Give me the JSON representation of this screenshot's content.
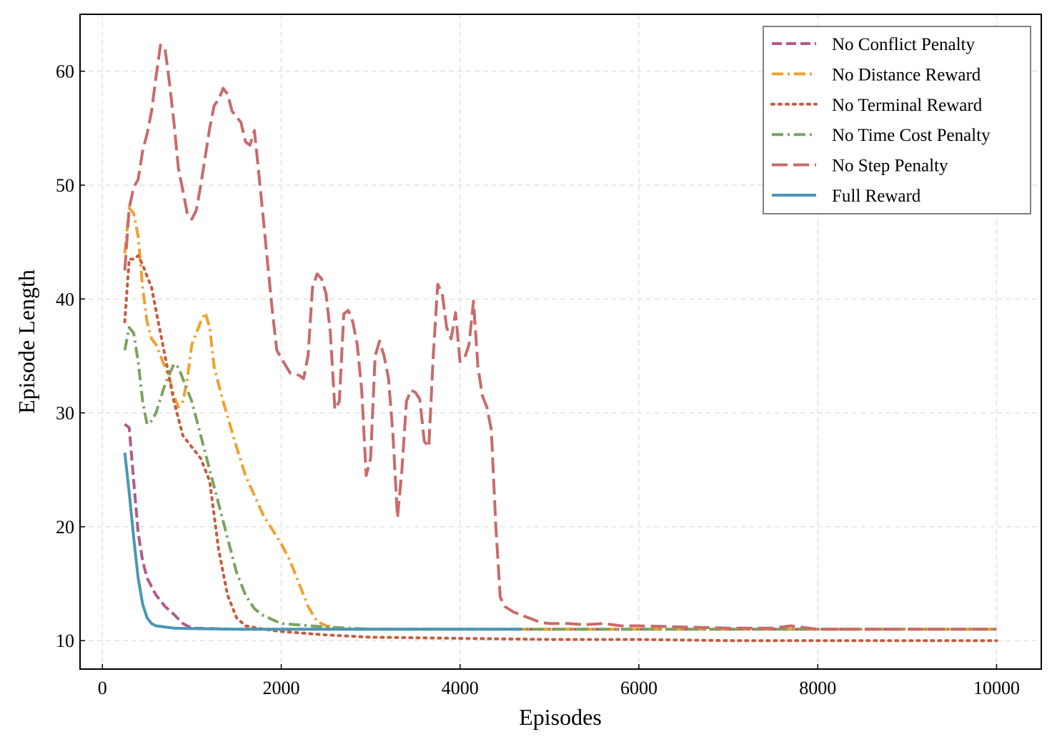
{
  "chart_data": {
    "type": "line",
    "title": "",
    "xlabel": "Episodes",
    "ylabel": "Episode Length",
    "xlim": [
      -250,
      10500
    ],
    "ylim": [
      7.5,
      65
    ],
    "xticks": [
      0,
      2000,
      4000,
      6000,
      8000,
      10000
    ],
    "xtick_labels": [
      "0",
      "2000",
      "4000",
      "6000",
      "8000",
      "10000"
    ],
    "yticks": [
      10,
      20,
      30,
      40,
      50,
      60
    ],
    "ytick_labels": [
      "10",
      "20",
      "30",
      "40",
      "50",
      "60"
    ],
    "grid": true,
    "legend_position": "top-right",
    "series": [
      {
        "name": "No Conflict Penalty",
        "color": "#b05a8c",
        "dash": "dash",
        "points": [
          [
            250,
            29
          ],
          [
            300,
            28.7
          ],
          [
            350,
            24
          ],
          [
            400,
            19.5
          ],
          [
            450,
            17
          ],
          [
            500,
            15.5
          ],
          [
            600,
            14
          ],
          [
            700,
            13
          ],
          [
            800,
            12.3
          ],
          [
            900,
            11.5
          ],
          [
            1000,
            11.1
          ],
          [
            1500,
            11.0
          ],
          [
            2000,
            11.0
          ],
          [
            3000,
            11.0
          ],
          [
            4000,
            11.0
          ],
          [
            5000,
            11.0
          ],
          [
            6000,
            11.0
          ],
          [
            7000,
            11.0
          ],
          [
            8000,
            11.0
          ],
          [
            9000,
            11.0
          ],
          [
            10000,
            11.0
          ]
        ]
      },
      {
        "name": "No Distance Reward",
        "color": "#f0a030",
        "dash": "dashdot",
        "points": [
          [
            250,
            44
          ],
          [
            300,
            48
          ],
          [
            350,
            47.5
          ],
          [
            400,
            45.5
          ],
          [
            450,
            41
          ],
          [
            500,
            38
          ],
          [
            550,
            36.5
          ],
          [
            600,
            36
          ],
          [
            700,
            34
          ],
          [
            750,
            33
          ],
          [
            800,
            31.5
          ],
          [
            850,
            30.5
          ],
          [
            900,
            31
          ],
          [
            950,
            33
          ],
          [
            1000,
            36
          ],
          [
            1100,
            38
          ],
          [
            1150,
            38.8
          ],
          [
            1200,
            37.5
          ],
          [
            1250,
            34
          ],
          [
            1350,
            31
          ],
          [
            1500,
            27
          ],
          [
            1600,
            24.5
          ],
          [
            1800,
            21
          ],
          [
            2000,
            18.5
          ],
          [
            2100,
            17
          ],
          [
            2200,
            15
          ],
          [
            2300,
            13
          ],
          [
            2400,
            11.7
          ],
          [
            2500,
            11.3
          ],
          [
            2700,
            11.0
          ],
          [
            3000,
            11.0
          ],
          [
            4000,
            11.0
          ],
          [
            5000,
            11.0
          ],
          [
            6000,
            11.0
          ],
          [
            7000,
            11.0
          ],
          [
            8000,
            11.0
          ],
          [
            9000,
            11.0
          ],
          [
            10000,
            11.0
          ]
        ]
      },
      {
        "name": "No Terminal Reward",
        "color": "#c75b3c",
        "dash": "dot",
        "points": [
          [
            250,
            38
          ],
          [
            300,
            43.5
          ],
          [
            350,
            43.5
          ],
          [
            400,
            43.8
          ],
          [
            450,
            43
          ],
          [
            500,
            42
          ],
          [
            550,
            41
          ],
          [
            600,
            39
          ],
          [
            700,
            35
          ],
          [
            800,
            31
          ],
          [
            900,
            28
          ],
          [
            1000,
            27
          ],
          [
            1100,
            26
          ],
          [
            1200,
            24
          ],
          [
            1300,
            18
          ],
          [
            1400,
            14
          ],
          [
            1500,
            12
          ],
          [
            1600,
            11.3
          ],
          [
            1800,
            11.0
          ],
          [
            2000,
            10.8
          ],
          [
            2500,
            10.5
          ],
          [
            3000,
            10.3
          ],
          [
            4000,
            10.2
          ],
          [
            5000,
            10.1
          ],
          [
            6000,
            10.1
          ],
          [
            7000,
            10.0
          ],
          [
            8000,
            10.0
          ],
          [
            9000,
            10.0
          ],
          [
            10000,
            10.0
          ]
        ]
      },
      {
        "name": "No Time Cost Penalty",
        "color": "#7aa35c",
        "dash": "dashdot",
        "points": [
          [
            250,
            35.5
          ],
          [
            300,
            37.5
          ],
          [
            350,
            37
          ],
          [
            400,
            34.5
          ],
          [
            450,
            31
          ],
          [
            500,
            29
          ],
          [
            550,
            29.3
          ],
          [
            600,
            30
          ],
          [
            700,
            32.5
          ],
          [
            800,
            34.3
          ],
          [
            850,
            34
          ],
          [
            900,
            33
          ],
          [
            1000,
            31
          ],
          [
            1100,
            28
          ],
          [
            1200,
            25
          ],
          [
            1300,
            22
          ],
          [
            1400,
            19
          ],
          [
            1500,
            16
          ],
          [
            1600,
            14
          ],
          [
            1700,
            12.8
          ],
          [
            1800,
            12.2
          ],
          [
            2000,
            11.5
          ],
          [
            2500,
            11.2
          ],
          [
            3000,
            11.0
          ],
          [
            4000,
            11.0
          ],
          [
            5000,
            11.0
          ],
          [
            6000,
            11.0
          ],
          [
            7000,
            11.0
          ],
          [
            8000,
            11.0
          ],
          [
            9000,
            11.0
          ],
          [
            10000,
            11.0
          ]
        ]
      },
      {
        "name": "No Step Penalty",
        "color": "#c96a6a",
        "dash": "longdash",
        "points": [
          [
            250,
            42.5
          ],
          [
            300,
            48
          ],
          [
            350,
            49.8
          ],
          [
            400,
            50.5
          ],
          [
            450,
            53
          ],
          [
            500,
            54.5
          ],
          [
            550,
            56.5
          ],
          [
            600,
            59.5
          ],
          [
            650,
            62.3
          ],
          [
            700,
            62
          ],
          [
            750,
            59
          ],
          [
            800,
            55.5
          ],
          [
            850,
            51.5
          ],
          [
            900,
            49.5
          ],
          [
            950,
            47.5
          ],
          [
            1000,
            47
          ],
          [
            1050,
            47.8
          ],
          [
            1100,
            50
          ],
          [
            1150,
            52.5
          ],
          [
            1200,
            55
          ],
          [
            1250,
            57
          ],
          [
            1300,
            57.5
          ],
          [
            1350,
            58.5
          ],
          [
            1400,
            58
          ],
          [
            1450,
            56.5
          ],
          [
            1500,
            56
          ],
          [
            1550,
            55.5
          ],
          [
            1600,
            53.8
          ],
          [
            1650,
            53.5
          ],
          [
            1700,
            54.8
          ],
          [
            1750,
            51
          ],
          [
            1800,
            47
          ],
          [
            1850,
            43
          ],
          [
            1900,
            39
          ],
          [
            1950,
            35.5
          ],
          [
            2000,
            34.8
          ],
          [
            2100,
            33.5
          ],
          [
            2200,
            33.3
          ],
          [
            2250,
            33
          ],
          [
            2300,
            35
          ],
          [
            2350,
            41
          ],
          [
            2400,
            42.2
          ],
          [
            2450,
            41.8
          ],
          [
            2500,
            40.5
          ],
          [
            2550,
            37
          ],
          [
            2600,
            30.3
          ],
          [
            2650,
            31
          ],
          [
            2700,
            38.7
          ],
          [
            2750,
            39
          ],
          [
            2800,
            38
          ],
          [
            2850,
            36
          ],
          [
            2900,
            32
          ],
          [
            2950,
            24.5
          ],
          [
            3000,
            26
          ],
          [
            3050,
            35
          ],
          [
            3100,
            36.3
          ],
          [
            3150,
            35
          ],
          [
            3200,
            33
          ],
          [
            3250,
            28
          ],
          [
            3300,
            20.8
          ],
          [
            3350,
            25
          ],
          [
            3400,
            31
          ],
          [
            3450,
            32
          ],
          [
            3500,
            31.8
          ],
          [
            3550,
            31.2
          ],
          [
            3600,
            27.5
          ],
          [
            3650,
            27
          ],
          [
            3700,
            35
          ],
          [
            3750,
            41.3
          ],
          [
            3800,
            40.5
          ],
          [
            3850,
            37.5
          ],
          [
            3900,
            36.5
          ],
          [
            3950,
            38.8
          ],
          [
            4000,
            34.5
          ],
          [
            4050,
            34.8
          ],
          [
            4100,
            36
          ],
          [
            4150,
            39.8
          ],
          [
            4200,
            34
          ],
          [
            4250,
            31.5
          ],
          [
            4300,
            30.5
          ],
          [
            4350,
            28.5
          ],
          [
            4400,
            20
          ],
          [
            4450,
            13.8
          ],
          [
            4500,
            13
          ],
          [
            4600,
            12.5
          ],
          [
            4700,
            12.2
          ],
          [
            4800,
            11.9
          ],
          [
            4900,
            11.6
          ],
          [
            5000,
            11.5
          ],
          [
            5200,
            11.5
          ],
          [
            5400,
            11.4
          ],
          [
            5600,
            11.5
          ],
          [
            5800,
            11.3
          ],
          [
            6000,
            11.3
          ],
          [
            6500,
            11.2
          ],
          [
            7000,
            11.1
          ],
          [
            7500,
            11.1
          ],
          [
            7700,
            11.3
          ],
          [
            8000,
            11.0
          ],
          [
            9000,
            11.0
          ],
          [
            10000,
            11.0
          ]
        ]
      },
      {
        "name": "Full Reward",
        "color": "#4a96b5",
        "dash": "solid",
        "points": [
          [
            250,
            26.5
          ],
          [
            300,
            23
          ],
          [
            350,
            19
          ],
          [
            400,
            15.5
          ],
          [
            450,
            13.2
          ],
          [
            500,
            12
          ],
          [
            550,
            11.5
          ],
          [
            600,
            11.3
          ],
          [
            700,
            11.2
          ],
          [
            800,
            11.1
          ],
          [
            1000,
            11.05
          ],
          [
            1500,
            11.0
          ],
          [
            2000,
            11.0
          ],
          [
            3000,
            11.0
          ],
          [
            4000,
            11.0
          ],
          [
            4700,
            11.0
          ]
        ]
      }
    ]
  }
}
